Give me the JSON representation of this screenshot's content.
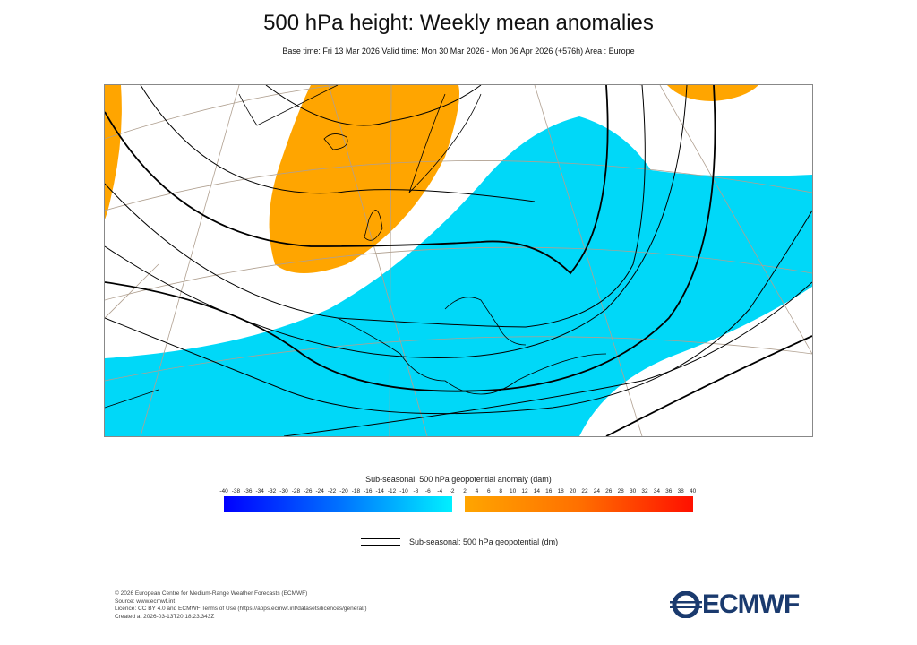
{
  "header": {
    "title": "500 hPa height: Weekly mean anomalies",
    "subtitle": "Base time: Fri 13 Mar 2026 Valid time: Mon 30 Mar 2026 - Mon 06 Apr 2026 (+576h) Area : Europe"
  },
  "map": {
    "area": "Europe",
    "colors": {
      "negative": "#00d8f8",
      "positive": "#ffa500",
      "contour": "#000000",
      "graticule": "#b0a090",
      "coast": "#000000"
    }
  },
  "colorbar": {
    "title": "Sub-seasonal: 500 hPa geopotential anomaly (dam)",
    "negative_ticks": [
      "-40",
      "-38",
      "-36",
      "-34",
      "-32",
      "-30",
      "-28",
      "-26",
      "-24",
      "-22",
      "-20",
      "-18",
      "-16",
      "-14",
      "-12",
      "-10",
      "-8",
      "-6",
      "-4",
      "-2"
    ],
    "positive_ticks": [
      "2",
      "4",
      "6",
      "8",
      "10",
      "12",
      "14",
      "16",
      "18",
      "20",
      "22",
      "24",
      "26",
      "28",
      "30",
      "32",
      "34",
      "36",
      "38",
      "40"
    ],
    "negative_colors": [
      "#0000ff",
      "#00f0ff"
    ],
    "positive_colors": [
      "#ffa500",
      "#ff1000"
    ]
  },
  "line_legend": {
    "label": "Sub-seasonal: 500 hPa geopotential (dm)"
  },
  "footer": {
    "lines": [
      "© 2026 European Centre for Medium-Range Weather Forecasts (ECMWF)",
      "Source: www.ecmwf.int",
      "Licence: CC BY 4.0 and ECMWF Terms of Use (https://apps.ecmwf.int/datasets/licences/general/)",
      "Created at 2026-03-13T20:18:23.343Z"
    ]
  },
  "logo": {
    "text": "ECMWF"
  }
}
